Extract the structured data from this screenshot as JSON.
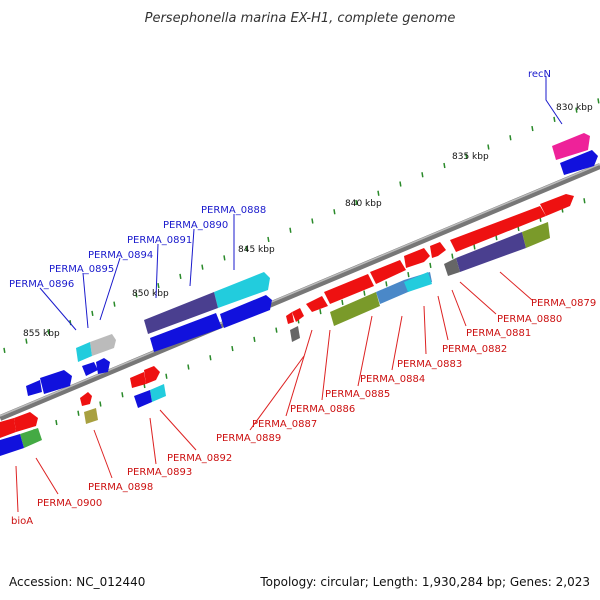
{
  "title": "Persephonella marina EX-H1, complete genome",
  "footer": {
    "accession": "Accession: NC_012440",
    "summary": "Topology: circular; Length: 1,930,284 bp; Genes: 2,023"
  },
  "scale_labels": [
    "830 kbp",
    "835 kbp",
    "840 kbp",
    "845 kbp",
    "850 kbp",
    "855 kbp"
  ],
  "blue_labels": [
    "recN",
    "PERMA_0888",
    "PERMA_0890",
    "PERMA_0891",
    "PERMA_0894",
    "PERMA_0895",
    "PERMA_0896"
  ],
  "red_labels": [
    "PERMA_0879",
    "PERMA_0880",
    "PERMA_0881",
    "PERMA_0882",
    "PERMA_0883",
    "PERMA_0884",
    "PERMA_0885",
    "PERMA_0886",
    "PERMA_0887",
    "PERMA_0889",
    "PERMA_0892",
    "PERMA_0893",
    "PERMA_0898",
    "PERMA_0900",
    "bioA"
  ],
  "colors": {
    "gene_red": "#ee1111",
    "gene_blue": "#1111dd",
    "cds_navy": "#4a3f8f",
    "cds_cyan": "#22ccdd",
    "cds_olive": "#7a9a2a",
    "cds_steel": "#4a88c8",
    "cds_magenta": "#ee2299",
    "backbone": "#888888",
    "tick": "#2a8a2a"
  }
}
